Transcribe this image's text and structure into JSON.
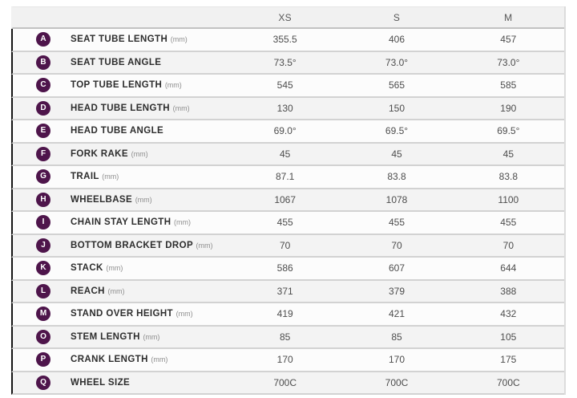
{
  "table": {
    "size_headers": [
      "XS",
      "S",
      "M"
    ],
    "rows": [
      {
        "letter": "A",
        "label": "SEAT TUBE LENGTH",
        "unit": "(mm)",
        "values": [
          "355.5",
          "406",
          "457"
        ]
      },
      {
        "letter": "B",
        "label": "SEAT TUBE ANGLE",
        "unit": "",
        "values": [
          "73.5°",
          "73.0°",
          "73.0°"
        ]
      },
      {
        "letter": "C",
        "label": "TOP TUBE LENGTH",
        "unit": "(mm)",
        "values": [
          "545",
          "565",
          "585"
        ]
      },
      {
        "letter": "D",
        "label": "HEAD TUBE LENGTH",
        "unit": "(mm)",
        "values": [
          "130",
          "150",
          "190"
        ]
      },
      {
        "letter": "E",
        "label": "HEAD TUBE ANGLE",
        "unit": "",
        "values": [
          "69.0°",
          "69.5°",
          "69.5°"
        ]
      },
      {
        "letter": "F",
        "label": "FORK RAKE",
        "unit": "(mm)",
        "values": [
          "45",
          "45",
          "45"
        ]
      },
      {
        "letter": "G",
        "label": "TRAIL",
        "unit": "(mm)",
        "values": [
          "87.1",
          "83.8",
          "83.8"
        ]
      },
      {
        "letter": "H",
        "label": "WHEELBASE",
        "unit": "(mm)",
        "values": [
          "1067",
          "1078",
          "1100"
        ]
      },
      {
        "letter": "I",
        "label": "CHAIN STAY LENGTH",
        "unit": "(mm)",
        "values": [
          "455",
          "455",
          "455"
        ]
      },
      {
        "letter": "J",
        "label": "BOTTOM BRACKET DROP",
        "unit": "(mm)",
        "values": [
          "70",
          "70",
          "70"
        ]
      },
      {
        "letter": "K",
        "label": "STACK",
        "unit": "(mm)",
        "values": [
          "586",
          "607",
          "644"
        ]
      },
      {
        "letter": "L",
        "label": "REACH",
        "unit": "(mm)",
        "values": [
          "371",
          "379",
          "388"
        ]
      },
      {
        "letter": "M",
        "label": "STAND OVER HEIGHT",
        "unit": "(mm)",
        "values": [
          "419",
          "421",
          "432"
        ]
      },
      {
        "letter": "O",
        "label": "STEM LENGTH",
        "unit": "(mm)",
        "values": [
          "85",
          "85",
          "105"
        ]
      },
      {
        "letter": "P",
        "label": "CRANK LENGTH",
        "unit": "(mm)",
        "values": [
          "170",
          "170",
          "175"
        ]
      },
      {
        "letter": "Q",
        "label": "WHEEL SIZE",
        "unit": "",
        "values": [
          "700C",
          "700C",
          "700C"
        ]
      }
    ],
    "colors": {
      "badge_background": "#4e154b",
      "badge_text": "#ffffff",
      "header_background": "#f1f1f1",
      "stripe_background": "#f3f3f3",
      "row_background": "#fcfcfc",
      "accent_left_border": "#141414",
      "separator": "#d2d2d2"
    }
  },
  "chart_data": {
    "type": "table",
    "columns": [
      "",
      "",
      "XS",
      "S",
      "M"
    ],
    "rows": [
      [
        "A",
        "SEAT TUBE LENGTH (mm)",
        "355.5",
        "406",
        "457"
      ],
      [
        "B",
        "SEAT TUBE ANGLE",
        "73.5°",
        "73.0°",
        "73.0°"
      ],
      [
        "C",
        "TOP TUBE LENGTH (mm)",
        "545",
        "565",
        "585"
      ],
      [
        "D",
        "HEAD TUBE LENGTH (mm)",
        "130",
        "150",
        "190"
      ],
      [
        "E",
        "HEAD TUBE ANGLE",
        "69.0°",
        "69.5°",
        "69.5°"
      ],
      [
        "F",
        "FORK RAKE (mm)",
        "45",
        "45",
        "45"
      ],
      [
        "G",
        "TRAIL (mm)",
        "87.1",
        "83.8",
        "83.8"
      ],
      [
        "H",
        "WHEELBASE (mm)",
        "1067",
        "1078",
        "1100"
      ],
      [
        "I",
        "CHAIN STAY LENGTH (mm)",
        "455",
        "455",
        "455"
      ],
      [
        "J",
        "BOTTOM BRACKET DROP (mm)",
        "70",
        "70",
        "70"
      ],
      [
        "K",
        "STACK (mm)",
        "586",
        "607",
        "644"
      ],
      [
        "L",
        "REACH (mm)",
        "371",
        "379",
        "388"
      ],
      [
        "M",
        "STAND OVER HEIGHT (mm)",
        "419",
        "421",
        "432"
      ],
      [
        "O",
        "STEM LENGTH (mm)",
        "85",
        "85",
        "105"
      ],
      [
        "P",
        "CRANK LENGTH (mm)",
        "170",
        "170",
        "175"
      ],
      [
        "Q",
        "WHEEL SIZE",
        "700C",
        "700C",
        "700C"
      ]
    ],
    "layout": {
      "grid": "horizontal separators",
      "striped_rows": true,
      "value_alignment": "center"
    }
  }
}
